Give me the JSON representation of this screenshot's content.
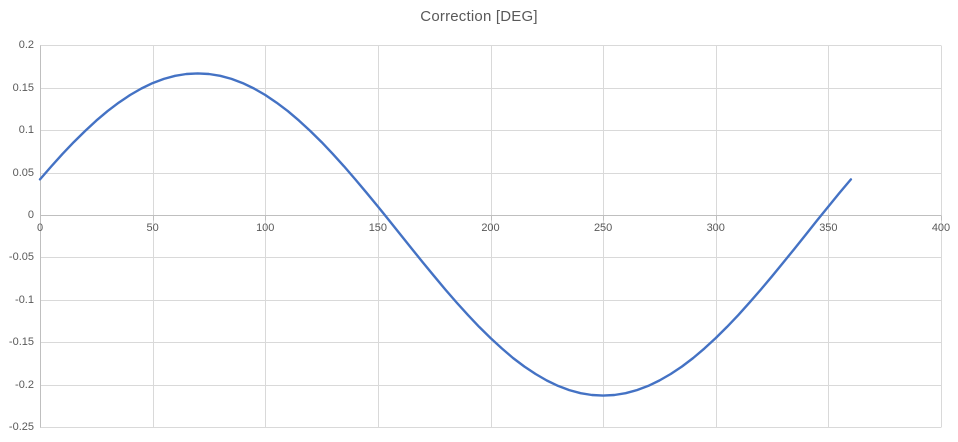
{
  "title": "Correction [DEG]",
  "colors": {
    "line": "#4472C4",
    "gridline": "#D9D9D9",
    "axis": "#BFBFBF",
    "label": "#595959",
    "title": "#595959",
    "background": "#FFFFFF"
  },
  "chart_data": {
    "type": "line",
    "title": "Correction [DEG]",
    "xlabel": "",
    "ylabel": "",
    "xlim": [
      0,
      400
    ],
    "ylim": [
      -0.25,
      0.2
    ],
    "x_tick_step": 50,
    "y_tick_step": 0.05,
    "x_ticks": [
      "0",
      "50",
      "100",
      "150",
      "200",
      "250",
      "300",
      "350",
      "400"
    ],
    "y_ticks": [
      "0.2",
      "0.15",
      "0.1",
      "0.05",
      "0",
      "-0.05",
      "-0.1",
      "-0.15",
      "-0.2",
      "-0.25"
    ],
    "grid": true,
    "legend": false,
    "series": [
      {
        "name": "Correction",
        "color": "#4472C4",
        "points": [
          [
            0,
            0.042
          ],
          [
            5,
            0.0573
          ],
          [
            10,
            0.072
          ],
          [
            15,
            0.086
          ],
          [
            20,
            0.0991
          ],
          [
            25,
            0.1113
          ],
          [
            30,
            0.1225
          ],
          [
            35,
            0.1326
          ],
          [
            40,
            0.1415
          ],
          [
            45,
            0.1492
          ],
          [
            50,
            0.1555
          ],
          [
            55,
            0.1605
          ],
          [
            60,
            0.1641
          ],
          [
            65,
            0.1663
          ],
          [
            70,
            0.167
          ],
          [
            75,
            0.1663
          ],
          [
            80,
            0.1641
          ],
          [
            85,
            0.1605
          ],
          [
            90,
            0.1555
          ],
          [
            95,
            0.1492
          ],
          [
            100,
            0.1415
          ],
          [
            105,
            0.1326
          ],
          [
            110,
            0.1225
          ],
          [
            115,
            0.1113
          ],
          [
            120,
            0.0991
          ],
          [
            125,
            0.086
          ],
          [
            130,
            0.072
          ],
          [
            135,
            0.0573
          ],
          [
            140,
            0.042
          ],
          [
            145,
            0.0262
          ],
          [
            150,
            0.01
          ],
          [
            155,
            -0.0064
          ],
          [
            160,
            -0.023
          ],
          [
            165,
            -0.0396
          ],
          [
            170,
            -0.056
          ],
          [
            175,
            -0.0722
          ],
          [
            180,
            -0.088
          ],
          [
            185,
            -0.1033
          ],
          [
            190,
            -0.118
          ],
          [
            195,
            -0.132
          ],
          [
            200,
            -0.1451
          ],
          [
            205,
            -0.1573
          ],
          [
            210,
            -0.1686
          ],
          [
            215,
            -0.1786
          ],
          [
            220,
            -0.1875
          ],
          [
            225,
            -0.1952
          ],
          [
            230,
            -0.2015
          ],
          [
            235,
            -0.2065
          ],
          [
            240,
            -0.2101
          ],
          [
            245,
            -0.2123
          ],
          [
            250,
            -0.213
          ],
          [
            255,
            -0.2123
          ],
          [
            260,
            -0.2101
          ],
          [
            265,
            -0.2065
          ],
          [
            270,
            -0.2015
          ],
          [
            275,
            -0.1952
          ],
          [
            280,
            -0.1875
          ],
          [
            285,
            -0.1786
          ],
          [
            290,
            -0.1686
          ],
          [
            295,
            -0.1573
          ],
          [
            300,
            -0.1451
          ],
          [
            305,
            -0.132
          ],
          [
            310,
            -0.118
          ],
          [
            315,
            -0.1033
          ],
          [
            320,
            -0.088
          ],
          [
            325,
            -0.0722
          ],
          [
            330,
            -0.056
          ],
          [
            335,
            -0.0396
          ],
          [
            340,
            -0.023
          ],
          [
            345,
            -0.0064
          ],
          [
            350,
            0.01
          ],
          [
            355,
            0.0262
          ],
          [
            360,
            0.042
          ]
        ]
      }
    ]
  }
}
